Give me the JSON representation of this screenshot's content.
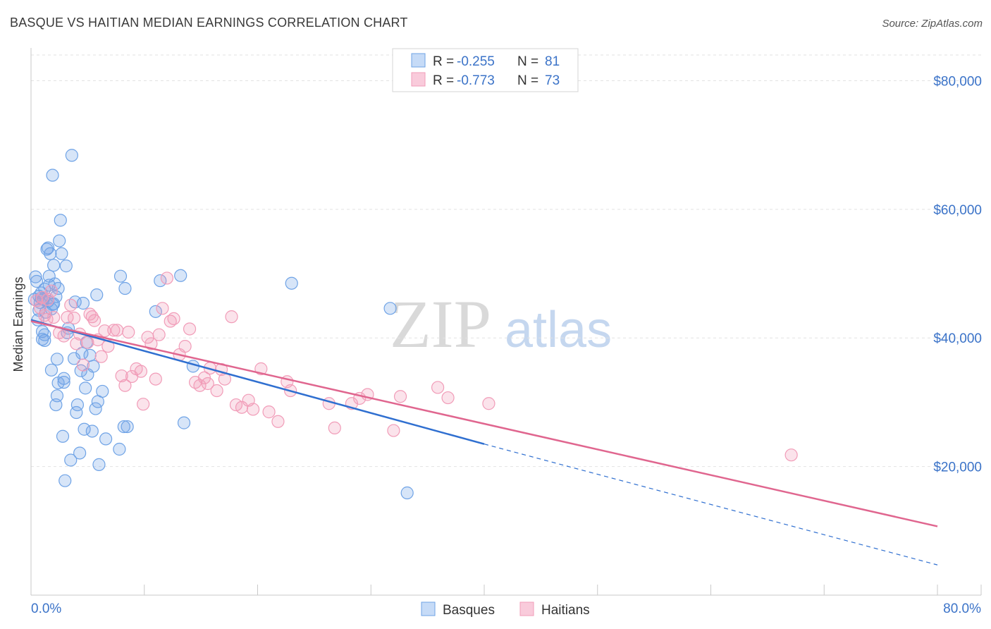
{
  "chart_data": {
    "type": "scatter",
    "title": "BASQUE VS HAITIAN MEDIAN EARNINGS CORRELATION CHART",
    "source": "Source: ZipAtlas.com",
    "xlabel": "",
    "ylabel": "Median Earnings",
    "xlim": [
      0,
      80
    ],
    "ylim": [
      0,
      84000
    ],
    "x_tick_labels": [
      "0.0%",
      "80.0%"
    ],
    "y_ticks": [
      {
        "value": 20000,
        "label": "$20,000"
      },
      {
        "value": 40000,
        "label": "$40,000"
      },
      {
        "value": 60000,
        "label": "$60,000"
      },
      {
        "value": 80000,
        "label": "$80,000"
      }
    ],
    "watermark": {
      "part1": "ZIP",
      "part2": "atlas"
    },
    "legend": [
      {
        "series": "Basques",
        "r_label": "R =",
        "r_value": "-0.255",
        "n_label": "N =",
        "n_value": "81"
      },
      {
        "series": "Haitians",
        "r_label": "R =",
        "r_value": "-0.773",
        "n_label": "N =",
        "n_value": "73"
      }
    ],
    "series": [
      {
        "name": "Basques",
        "color": "#6fa3e6",
        "line_color": "#2f6fd0",
        "trend": {
          "x0": 0,
          "y0": 42800,
          "x1": 40,
          "y1": 23500,
          "dash_to_x": 80,
          "dash_to_y": 4700
        },
        "points": [
          [
            0.3,
            46000
          ],
          [
            0.4,
            49500
          ],
          [
            0.5,
            48800
          ],
          [
            0.6,
            42800
          ],
          [
            0.7,
            46500
          ],
          [
            0.8,
            45500
          ],
          [
            0.9,
            47000
          ],
          [
            1.0,
            41000
          ],
          [
            1.0,
            39800
          ],
          [
            1.1,
            46000
          ],
          [
            1.2,
            40500
          ],
          [
            1.2,
            39600
          ],
          [
            1.3,
            44000
          ],
          [
            1.4,
            53800
          ],
          [
            1.5,
            54000
          ],
          [
            1.5,
            45700
          ],
          [
            1.6,
            48200
          ],
          [
            1.7,
            53100
          ],
          [
            1.8,
            35000
          ],
          [
            1.8,
            44500
          ],
          [
            1.9,
            45200
          ],
          [
            1.9,
            65300
          ],
          [
            2.0,
            51300
          ],
          [
            2.0,
            45300
          ],
          [
            2.1,
            48400
          ],
          [
            2.2,
            46400
          ],
          [
            2.2,
            29600
          ],
          [
            2.3,
            31000
          ],
          [
            2.3,
            36700
          ],
          [
            2.4,
            47700
          ],
          [
            2.5,
            55100
          ],
          [
            2.6,
            58300
          ],
          [
            2.7,
            53100
          ],
          [
            2.8,
            24700
          ],
          [
            2.9,
            33700
          ],
          [
            2.9,
            33100
          ],
          [
            3.0,
            17800
          ],
          [
            3.1,
            51200
          ],
          [
            3.2,
            40800
          ],
          [
            3.3,
            41500
          ],
          [
            3.5,
            21000
          ],
          [
            3.6,
            68400
          ],
          [
            3.8,
            36800
          ],
          [
            3.9,
            45600
          ],
          [
            4.0,
            28400
          ],
          [
            4.1,
            29600
          ],
          [
            4.3,
            22100
          ],
          [
            4.4,
            34900
          ],
          [
            4.5,
            37600
          ],
          [
            4.6,
            45400
          ],
          [
            4.7,
            25800
          ],
          [
            4.8,
            32200
          ],
          [
            4.9,
            39300
          ],
          [
            5.0,
            34300
          ],
          [
            5.2,
            37300
          ],
          [
            5.4,
            25500
          ],
          [
            5.5,
            35600
          ],
          [
            5.7,
            29000
          ],
          [
            5.8,
            46700
          ],
          [
            5.9,
            30100
          ],
          [
            6.0,
            20300
          ],
          [
            6.3,
            31700
          ],
          [
            6.6,
            24300
          ],
          [
            7.8,
            22700
          ],
          [
            7.9,
            49600
          ],
          [
            8.2,
            26200
          ],
          [
            8.3,
            47700
          ],
          [
            8.5,
            26200
          ],
          [
            11.0,
            44100
          ],
          [
            11.4,
            48900
          ],
          [
            13.2,
            49700
          ],
          [
            13.5,
            26800
          ],
          [
            14.3,
            35600
          ],
          [
            23.0,
            48500
          ],
          [
            31.7,
            44600
          ],
          [
            33.2,
            15900
          ],
          [
            1.2,
            47600
          ],
          [
            0.9,
            46200
          ],
          [
            2.4,
            33000
          ],
          [
            1.6,
            49600
          ],
          [
            0.7,
            44300
          ]
        ]
      },
      {
        "name": "Haitians",
        "color": "#f19cb8",
        "line_color": "#e0668f",
        "trend": {
          "x0": 0,
          "y0": 42600,
          "x1": 80,
          "y1": 10700
        },
        "points": [
          [
            0.5,
            45800
          ],
          [
            0.8,
            44700
          ],
          [
            1.0,
            46300
          ],
          [
            1.2,
            43500
          ],
          [
            1.4,
            42900
          ],
          [
            1.5,
            46000
          ],
          [
            1.8,
            47300
          ],
          [
            2.0,
            43200
          ],
          [
            2.5,
            40800
          ],
          [
            2.9,
            40300
          ],
          [
            3.2,
            43200
          ],
          [
            3.5,
            45100
          ],
          [
            3.8,
            43100
          ],
          [
            4.0,
            39100
          ],
          [
            4.3,
            40600
          ],
          [
            4.6,
            35800
          ],
          [
            5.0,
            39300
          ],
          [
            5.2,
            43700
          ],
          [
            5.4,
            43300
          ],
          [
            5.6,
            42700
          ],
          [
            5.9,
            39700
          ],
          [
            6.2,
            37100
          ],
          [
            6.5,
            41100
          ],
          [
            6.8,
            38700
          ],
          [
            7.3,
            41200
          ],
          [
            7.6,
            41200
          ],
          [
            8.0,
            34100
          ],
          [
            8.3,
            32600
          ],
          [
            8.6,
            40900
          ],
          [
            8.9,
            34000
          ],
          [
            9.3,
            35200
          ],
          [
            9.7,
            34800
          ],
          [
            9.9,
            29700
          ],
          [
            10.3,
            40100
          ],
          [
            10.6,
            39100
          ],
          [
            11.0,
            33600
          ],
          [
            11.3,
            40500
          ],
          [
            11.6,
            44600
          ],
          [
            12.0,
            49300
          ],
          [
            12.3,
            42600
          ],
          [
            12.6,
            43000
          ],
          [
            13.1,
            37400
          ],
          [
            13.6,
            38700
          ],
          [
            14.0,
            41400
          ],
          [
            14.5,
            33100
          ],
          [
            14.9,
            32600
          ],
          [
            15.3,
            33800
          ],
          [
            15.6,
            32900
          ],
          [
            15.8,
            35300
          ],
          [
            16.4,
            31800
          ],
          [
            16.8,
            35100
          ],
          [
            17.1,
            33600
          ],
          [
            17.7,
            43300
          ],
          [
            18.1,
            29600
          ],
          [
            18.6,
            29200
          ],
          [
            19.2,
            30300
          ],
          [
            19.6,
            28900
          ],
          [
            20.3,
            35200
          ],
          [
            21.0,
            28500
          ],
          [
            21.8,
            27000
          ],
          [
            22.6,
            33200
          ],
          [
            22.9,
            31800
          ],
          [
            26.3,
            29800
          ],
          [
            26.8,
            26000
          ],
          [
            28.3,
            29800
          ],
          [
            29.0,
            30600
          ],
          [
            29.7,
            31200
          ],
          [
            32.0,
            25600
          ],
          [
            32.6,
            30900
          ],
          [
            35.9,
            32300
          ],
          [
            36.8,
            30700
          ],
          [
            40.4,
            29800
          ],
          [
            67.1,
            21800
          ]
        ]
      }
    ]
  }
}
